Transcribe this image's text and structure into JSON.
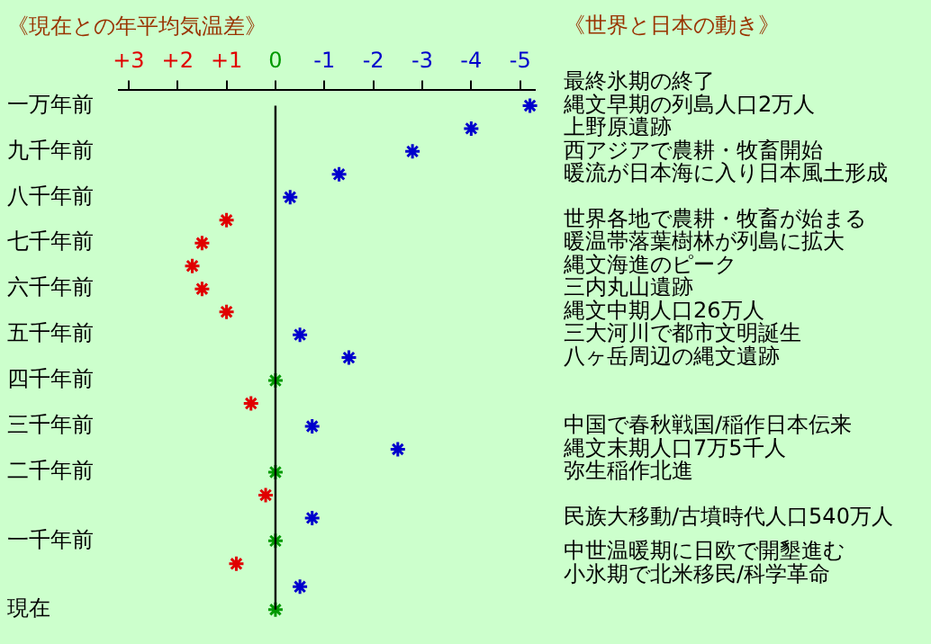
{
  "chart_data": {
    "type": "scatter",
    "orientation": "horizontal",
    "title": "《現在との年平均気温差》",
    "subtitle": "《世界と日本の動き》",
    "categories": [
      "一万年前",
      null,
      "九千年前",
      null,
      "八千年前",
      null,
      "七千年前",
      null,
      "六千年前",
      null,
      "五千年前",
      null,
      "四千年前",
      null,
      "三千年前",
      null,
      "二千年前",
      null,
      null,
      "一千年前",
      null,
      null,
      "現在"
    ],
    "values": [
      -5.2,
      -4,
      -2.8,
      -1.3,
      -0.3,
      1,
      1.5,
      1.7,
      1.5,
      1,
      -0.5,
      -1.5,
      0,
      0.5,
      -0.75,
      -2.5,
      0,
      0.2,
      -0.75,
      0,
      0.8,
      -0.5,
      0
    ],
    "colors": [
      "#0000cc",
      "#0000cc",
      "#0000cc",
      "#0000cc",
      "#0000cc",
      "#e00000",
      "#e00000",
      "#e00000",
      "#e00000",
      "#e00000",
      "#0000cc",
      "#0000cc",
      "#009900",
      "#e00000",
      "#0000cc",
      "#0000cc",
      "#009900",
      "#e00000",
      "#0000cc",
      "#009900",
      "#e00000",
      "#0000cc",
      "#009900"
    ],
    "xlim": [
      3.2,
      -5.3
    ],
    "xticks": [
      {
        "value": 3,
        "label": "+3"
      },
      {
        "value": 2,
        "label": "+2"
      },
      {
        "value": 1,
        "label": "+1"
      },
      0,
      -1,
      -2,
      -3,
      -4,
      -5
    ],
    "ref_lines": [
      {
        "axis": "x",
        "value": 0,
        "color": "#000000"
      }
    ],
    "marker": "cross",
    "grid": false,
    "legend": false,
    "annotations": [
      "最終氷期の終了",
      "縄文早期の列島人口2万人",
      "上野原遺跡",
      "西アジアで農耕・牧畜開始",
      "暖流が日本海に入り日本風土形成",
      "世界各地で農耕・牧畜が始まる",
      "暖温帯落葉樹林が列島に拡大",
      "縄文海進のピーク",
      "三内丸山遺跡",
      "縄文中期人口26万人",
      "三大河川で都市文明誕生",
      "八ヶ岳周辺の縄文遺跡",
      "中国で春秋戦国/稲作日本伝来",
      "縄文末期人口7万5千人",
      "弥生稲作北進",
      "民族大移動/古墳時代人口540万人",
      "中世温暖期に日欧で開墾進む",
      "小氷期で北米移民/科学革命"
    ]
  }
}
